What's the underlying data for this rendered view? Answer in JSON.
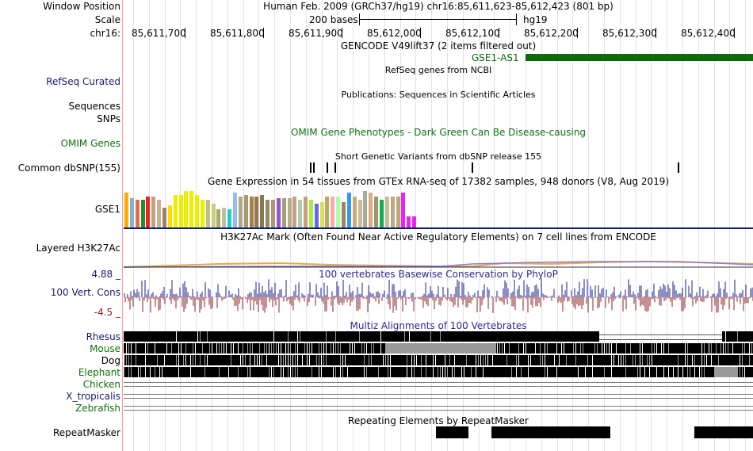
{
  "header": {
    "window_position_label": "Window Position",
    "window_position_value": "Human Feb. 2009 (GRCh37/hg19)   chr16:85,611,623-85,612,423 (801 bp)",
    "scale_label": "Scale",
    "scale_bar_text": "200 bases",
    "scale_assembly": "hg19",
    "chrom_label": "chr16:",
    "ticks": [
      "85,611,700",
      "85,611,800",
      "85,611,900",
      "85,612,000",
      "85,612,100",
      "85,612,200",
      "85,612,300",
      "85,612,400"
    ]
  },
  "tracks": {
    "gencode": {
      "title": "GENCODE V49lift37 (2 items filtered out)",
      "gene": "GSE1-AS1"
    },
    "refseq": {
      "label": "RefSeq Curated",
      "title": "RefSeq genes from NCBI"
    },
    "publications": {
      "title": "Publications: Sequences in Scientific Articles"
    },
    "sequences": {
      "label": "Sequences"
    },
    "snps": {
      "label": "SNPs"
    },
    "omim": {
      "label": "OMIM Genes",
      "title": "OMIM Gene Phenotypes - Dark Green Can Be Disease-causing"
    },
    "dbsnp": {
      "label": "Common dbSNP(155)",
      "title": "Short Genetic Variants from dbSNP release 155"
    },
    "gtex": {
      "label": "GSE1",
      "title": "Gene Expression in 54 tissues from GTEx RNA-seq of 17382 samples, 948 donors (V8, Aug 2019)"
    },
    "h3k27ac": {
      "label": "Layered H3K27Ac",
      "title": "H3K27Ac Mark (Often Found Near Active Regulatory Elements) on 7 cell lines from ENCODE"
    },
    "cons": {
      "label": "100 Vert. Cons",
      "max": "4.88 _",
      "min": "-4.5 _",
      "title": "100 vertebrates Basewise Conservation by PhyloP"
    },
    "multiz": {
      "title": "Multiz Alignments of 100 Vertebrates",
      "species": [
        "Rhesus",
        "Mouse",
        "Dog",
        "Elephant",
        "Chicken",
        "X_tropicalis",
        "Zebrafish"
      ]
    },
    "repeatmasker": {
      "label": "RepeatMasker",
      "title": "Repeating Elements by RepeatMasker"
    }
  },
  "gtex_levels": [
    0.95,
    0.8,
    0.75,
    0.75,
    0.85,
    0.85,
    0.75,
    0.55,
    0.6,
    0.9,
    0.9,
    1.0,
    1.0,
    0.9,
    0.75,
    0.75,
    0.65,
    0.5,
    0.55,
    0.5,
    0.95,
    0.85,
    0.9,
    0.85,
    0.85,
    0.9,
    0.75,
    0.75,
    0.8,
    0.8,
    0.8,
    0.85,
    0.75,
    0.85,
    0.75,
    0.65,
    0.7,
    0.85,
    0.85,
    0.85,
    0.7,
    0.95,
    0.85,
    0.75,
    1.0,
    0.95,
    0.85,
    0.75,
    0.85,
    0.85,
    0.85,
    0.95,
    0.3,
    0.3
  ],
  "gtex_colors": [
    "#ffaa00",
    "#88b0d0",
    "#e07050",
    "#209030",
    "#ee2020",
    "#c8a080",
    "#c8b090",
    "#a08060",
    "#ffdd00",
    "#eeee00",
    "#eeee00",
    "#eeee00",
    "#eeee00",
    "#eeee00",
    "#eeee00",
    "#c0c080",
    "#cccc88",
    "#aaaa66",
    "#c0c0a0",
    "#22cccc",
    "#99bbee",
    "#aaaa88",
    "#aa9966",
    "#a08050",
    "#997744",
    "#887755",
    "#998866",
    "#aa9977",
    "#9955cc",
    "#a0a080",
    "#bbaa88",
    "#c0a080",
    "#aaccaa",
    "#c8a080",
    "#aaee44",
    "#6666ee",
    "#dddd55",
    "#bbaa66",
    "#ffaaaa",
    "#aaffaa",
    "#998855",
    "#3399ee",
    "#ccaa77",
    "#ccbb99",
    "#aaaa99",
    "#ddaa88",
    "#999966",
    "#11aa55",
    "#ccbb99",
    "#bbaa88",
    "#bbaa77",
    "#ee22ee",
    "#ee22ee",
    "#ee22ee"
  ],
  "repeat_blocks": [
    [
      550,
      591
    ],
    [
      620,
      770
    ],
    [
      876,
      950
    ]
  ]
}
